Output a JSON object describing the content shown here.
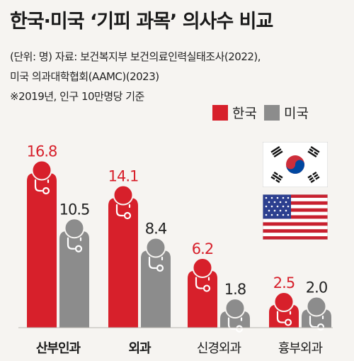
{
  "header": {
    "title": "한국·미국 ‘기피 과목’ 의사수 비교",
    "source_line1": "(단위: 명) 자료: 보건복지부 보건의료인력실태조사(2022),",
    "source_line2": "미국 의과대학협회(AAMC)(2023)",
    "note": "※2019년, 인구 10만명당 기준"
  },
  "colors": {
    "korea": "#d7202b",
    "usa": "#8c8c8c"
  },
  "icons": {
    "bar_cap": "doctor-stethoscope-icon",
    "korea": "korea-flag-icon",
    "usa": "usa-flag-icon"
  },
  "chart_data": {
    "type": "bar",
    "categories": [
      "산부인과",
      "외과",
      "신경외과",
      "흉부외과"
    ],
    "series": [
      {
        "name": "한국",
        "values": [
          16.8,
          14.1,
          6.2,
          2.5
        ]
      },
      {
        "name": "미국",
        "values": [
          10.5,
          8.4,
          1.8,
          2.0
        ]
      }
    ],
    "value_labels": [
      [
        "16.8",
        "14.1",
        "6.2",
        "2.5"
      ],
      [
        "10.5",
        "8.4",
        "1.8",
        "2.0"
      ]
    ],
    "category_bold": [
      true,
      true,
      false,
      false
    ],
    "legend_position": "top-right",
    "grid": false
  }
}
